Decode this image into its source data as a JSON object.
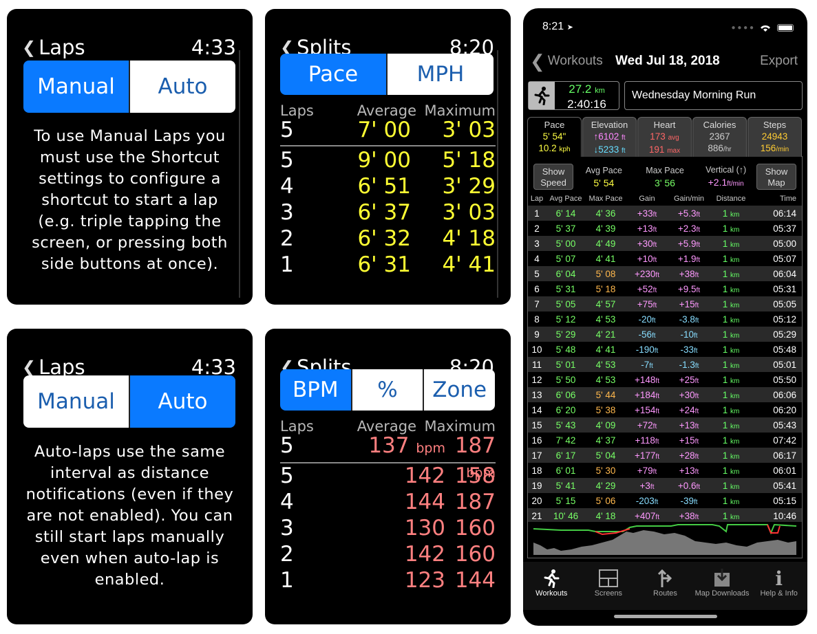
{
  "w1": {
    "title": "Laps",
    "time": "4:33",
    "seg": [
      "Manual",
      "Auto"
    ],
    "text": "To use Manual Laps you must use the Shortcut settings to configure a shortcut to start a lap (e.g. triple tapping the screen, or pressing both side buttons at once)."
  },
  "w2": {
    "title": "Splits",
    "time": "8:20",
    "seg": [
      "Pace",
      "MPH"
    ],
    "headers": [
      "Laps",
      "Average",
      "Maximum"
    ],
    "summary": {
      "lap": "5",
      "avg": "7' 00",
      "max": "3' 03"
    },
    "rows": [
      {
        "lap": "5",
        "avg": "9' 00",
        "max": "5' 18"
      },
      {
        "lap": "4",
        "avg": "6' 51",
        "max": "3' 29"
      },
      {
        "lap": "3",
        "avg": "6' 37",
        "max": "3' 03"
      },
      {
        "lap": "2",
        "avg": "6' 32",
        "max": "4' 18"
      },
      {
        "lap": "1",
        "avg": "6' 31",
        "max": "4' 41"
      }
    ]
  },
  "w3": {
    "title": "Laps",
    "time": "4:33",
    "seg": [
      "Manual",
      "Auto"
    ],
    "text": "Auto-laps use the same interval as distance notifications (even if they are not enabled). You can still start laps manually even when auto-lap is enabled."
  },
  "w4": {
    "title": "Splits",
    "time": "8:20",
    "seg": [
      "BPM",
      "%",
      "Zone"
    ],
    "headers": [
      "Laps",
      "Average",
      "Maximum"
    ],
    "unit": "bpm",
    "summary": {
      "lap": "5",
      "avg": "137",
      "max": "187"
    },
    "rows": [
      {
        "lap": "5",
        "avg": "142",
        "max": "158"
      },
      {
        "lap": "4",
        "avg": "144",
        "max": "187"
      },
      {
        "lap": "3",
        "avg": "130",
        "max": "160"
      },
      {
        "lap": "2",
        "avg": "142",
        "max": "160"
      },
      {
        "lap": "1",
        "avg": "123",
        "max": "144"
      }
    ]
  },
  "phone": {
    "status_time": "8:21",
    "nav": {
      "back": "Workouts",
      "title": "Wed Jul 18, 2018",
      "export": "Export"
    },
    "summary": {
      "distance": "27.2",
      "distance_unit": "km",
      "duration": "2:40:16",
      "name": "Wednesday Morning Run"
    },
    "tabs": [
      {
        "label": "Pace",
        "v1": "5' 54\"",
        "u1": "",
        "v2": "10.2",
        "u2": "kph"
      },
      {
        "label": "Elevation",
        "v1": "↑6102",
        "u1": "ft",
        "v2": "↓5233",
        "u2": "ft"
      },
      {
        "label": "Heart",
        "v1": "173",
        "u1": "avg",
        "v2": "191",
        "u2": "max"
      },
      {
        "label": "Calories",
        "v1": "2367",
        "u1": "",
        "v2": "886",
        "u2": "/hr"
      },
      {
        "label": "Steps",
        "v1": "24943",
        "u1": "",
        "v2": "156",
        "u2": "/min"
      }
    ],
    "controls": {
      "show_speed": [
        "Show",
        "Speed"
      ],
      "avg_pace_label": "Avg Pace",
      "avg_pace": "5' 54",
      "max_pace_label": "Max Pace",
      "max_pace": "3' 56",
      "vertical_label": "Vertical (↑)",
      "vertical": "+2.1",
      "vertical_unit": "ft/min",
      "show_map": [
        "Show",
        "Map"
      ]
    },
    "lap_headers": [
      "Lap",
      "Avg Pace",
      "Max Pace",
      "Gain",
      "Gain/min",
      "Distance",
      "Time"
    ],
    "laps": [
      [
        "1",
        "6' 14",
        "4' 36",
        "+33",
        "+5.3",
        "1",
        "06:14",
        "g"
      ],
      [
        "2",
        "5' 37",
        "4' 39",
        "+13",
        "+2.3",
        "1",
        "05:37",
        "g"
      ],
      [
        "3",
        "5' 00",
        "4' 49",
        "+30",
        "+5.9",
        "1",
        "05:00",
        "g"
      ],
      [
        "4",
        "5' 07",
        "4' 41",
        "+10",
        "+1.9",
        "1",
        "05:07",
        "g"
      ],
      [
        "5",
        "6' 04",
        "5' 08",
        "+230",
        "+38",
        "1",
        "06:04",
        "o"
      ],
      [
        "6",
        "5' 31",
        "5' 18",
        "+52",
        "+9.5",
        "1",
        "05:31",
        "o"
      ],
      [
        "7",
        "5' 05",
        "4' 57",
        "+75",
        "+15",
        "1",
        "05:05",
        "g"
      ],
      [
        "8",
        "5' 12",
        "4' 53",
        "-20",
        "-3.8",
        "1",
        "05:12",
        "g"
      ],
      [
        "9",
        "5' 29",
        "4' 21",
        "-56",
        "-10",
        "1",
        "05:29",
        "g"
      ],
      [
        "10",
        "5' 48",
        "4' 41",
        "-190",
        "-33",
        "1",
        "05:48",
        "g"
      ],
      [
        "11",
        "5' 01",
        "4' 53",
        "-7",
        "-1.3",
        "1",
        "05:01",
        "g"
      ],
      [
        "12",
        "5' 50",
        "4' 53",
        "+148",
        "+25",
        "1",
        "05:50",
        "g"
      ],
      [
        "13",
        "6' 06",
        "5' 44",
        "+184",
        "+30",
        "1",
        "06:06",
        "o"
      ],
      [
        "14",
        "6' 20",
        "5' 38",
        "+154",
        "+24",
        "1",
        "06:20",
        "o"
      ],
      [
        "15",
        "5' 43",
        "4' 09",
        "+72",
        "+13",
        "1",
        "05:43",
        "g"
      ],
      [
        "16",
        "7' 42",
        "4' 37",
        "+118",
        "+15",
        "1",
        "07:42",
        "g"
      ],
      [
        "17",
        "6' 17",
        "5' 04",
        "+177",
        "+28",
        "1",
        "06:17",
        "g"
      ],
      [
        "18",
        "6' 01",
        "5' 30",
        "+79",
        "+13",
        "1",
        "06:01",
        "o"
      ],
      [
        "19",
        "5' 41",
        "4' 29",
        "+3",
        "+0.6",
        "1",
        "05:41",
        "g"
      ],
      [
        "20",
        "5' 15",
        "5' 06",
        "-203",
        "-39",
        "1",
        "05:15",
        "o"
      ],
      [
        "21",
        "10' 46",
        "4' 18",
        "+407",
        "+38",
        "1",
        "10:46",
        "g"
      ]
    ],
    "gain_unit": "ft",
    "dist_unit": "km",
    "tabbar": [
      "Workouts",
      "Screens",
      "Routes",
      "Map Downloads",
      "Help & Info"
    ],
    "icons": [
      "runner-icon",
      "screens-icon",
      "routes-icon",
      "map-downloads-icon",
      "info-icon"
    ]
  }
}
